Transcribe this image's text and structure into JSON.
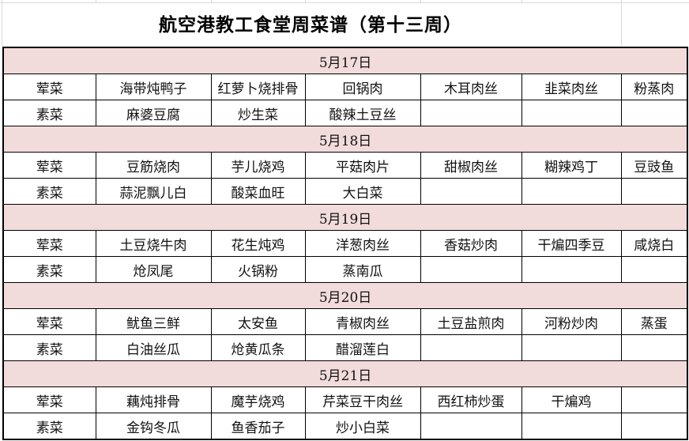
{
  "title": "航空港教工食堂周菜谱（第十三周）",
  "days": [
    {
      "date": "5月17日",
      "meat": {
        "label": "荤菜",
        "dishes": [
          "海带炖鸭子",
          "红萝卜烧排骨",
          "回锅肉",
          "木耳肉丝",
          "韭菜肉丝",
          "粉蒸肉"
        ]
      },
      "veg": {
        "label": "素菜",
        "dishes": [
          "麻婆豆腐",
          "炒生菜",
          "酸辣土豆丝",
          "",
          "",
          ""
        ]
      }
    },
    {
      "date": "5月18日",
      "meat": {
        "label": "荤菜",
        "dishes": [
          "豆筋烧肉",
          "芋儿烧鸡",
          "平菇肉片",
          "甜椒肉丝",
          "糊辣鸡丁",
          "豆豉鱼"
        ]
      },
      "veg": {
        "label": "素菜",
        "dishes": [
          "蒜泥飘儿白",
          "酸菜血旺",
          "大白菜",
          "",
          "",
          ""
        ]
      }
    },
    {
      "date": "5月19日",
      "meat": {
        "label": "荤菜",
        "dishes": [
          "土豆烧牛肉",
          "花生炖鸡",
          "洋葱肉丝",
          "香菇炒肉",
          "干煸四季豆",
          "咸烧白"
        ]
      },
      "veg": {
        "label": "素菜",
        "dishes": [
          "炝凤尾",
          "火锅粉",
          "蒸南瓜",
          "",
          "",
          ""
        ]
      }
    },
    {
      "date": "5月20日",
      "meat": {
        "label": "荤菜",
        "dishes": [
          "鱿鱼三鲜",
          "太安鱼",
          "青椒肉丝",
          "土豆盐煎肉",
          "河粉炒肉",
          "蒸蛋"
        ]
      },
      "veg": {
        "label": "素菜",
        "dishes": [
          "白油丝瓜",
          "炝黄瓜条",
          "醋溜莲白",
          "",
          "",
          ""
        ]
      }
    },
    {
      "date": "5月21日",
      "meat": {
        "label": "荤菜",
        "dishes": [
          "藕炖排骨",
          "魔芋烧鸡",
          "芹菜豆干肉丝",
          "西红柿炒蛋",
          "干煸鸡",
          ""
        ]
      },
      "veg": {
        "label": "素菜",
        "dishes": [
          "金钩冬瓜",
          "鱼香茄子",
          "炒小白菜",
          "",
          "",
          ""
        ]
      }
    }
  ],
  "colors": {
    "date_row_bg": "#f2dcdb",
    "border": "#000000"
  }
}
